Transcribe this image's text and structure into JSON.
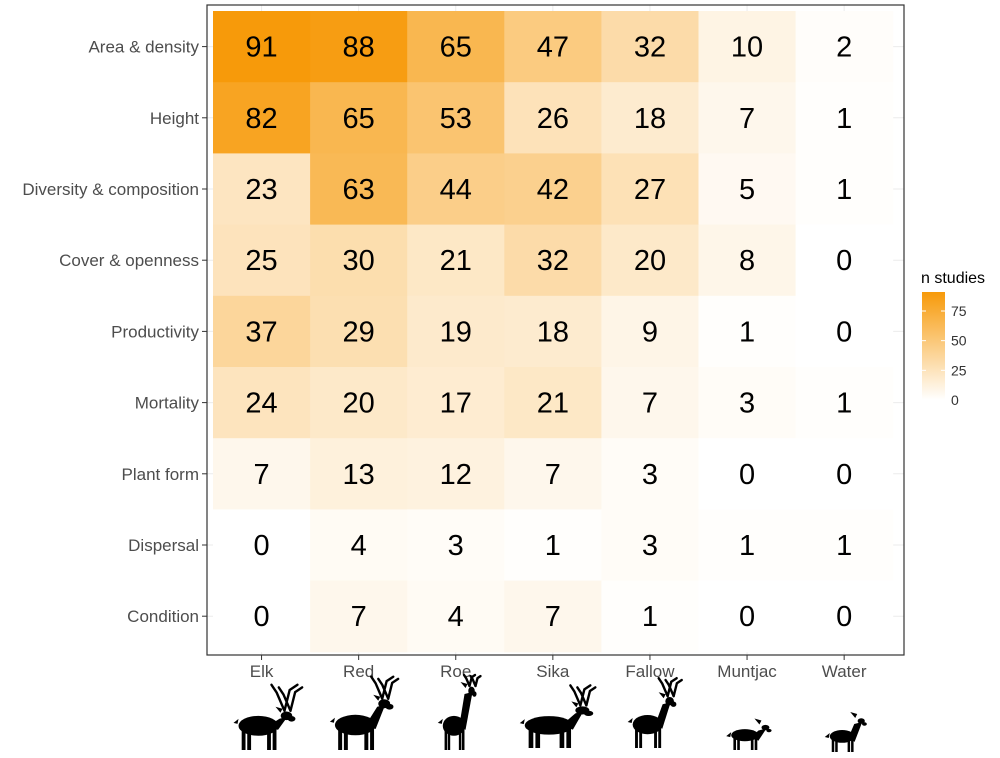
{
  "chart_data": {
    "type": "heatmap",
    "rows": [
      "Area & density",
      "Height",
      "Diversity & composition",
      "Cover & openness",
      "Productivity",
      "Mortality",
      "Plant form",
      "Dispersal",
      "Condition"
    ],
    "columns": [
      "Elk",
      "Red",
      "Roe",
      "Sika",
      "Fallow",
      "Muntjac",
      "Water"
    ],
    "values": [
      [
        91,
        88,
        65,
        47,
        32,
        10,
        2
      ],
      [
        82,
        65,
        53,
        26,
        18,
        7,
        1
      ],
      [
        23,
        63,
        44,
        42,
        27,
        5,
        1
      ],
      [
        25,
        30,
        21,
        32,
        20,
        8,
        0
      ],
      [
        37,
        29,
        19,
        18,
        9,
        1,
        0
      ],
      [
        24,
        20,
        17,
        21,
        7,
        3,
        1
      ],
      [
        7,
        13,
        12,
        7,
        3,
        0,
        0
      ],
      [
        0,
        4,
        3,
        1,
        3,
        1,
        1
      ],
      [
        0,
        7,
        4,
        7,
        1,
        0,
        0
      ]
    ],
    "color_scale": {
      "low": "#ffffff",
      "high": "#f79a0a",
      "min": 0,
      "max": 91
    },
    "legend": {
      "title": "n studies",
      "ticks": [
        "75",
        "50",
        "25",
        "0"
      ],
      "tick_values": [
        75,
        50,
        25,
        0
      ],
      "placement": "right"
    },
    "grid": true,
    "icons": [
      "elk-silhouette",
      "red-deer-silhouette",
      "roe-deer-silhouette",
      "sika-deer-silhouette",
      "fallow-deer-silhouette",
      "muntjac-silhouette",
      "water-deer-silhouette"
    ]
  }
}
